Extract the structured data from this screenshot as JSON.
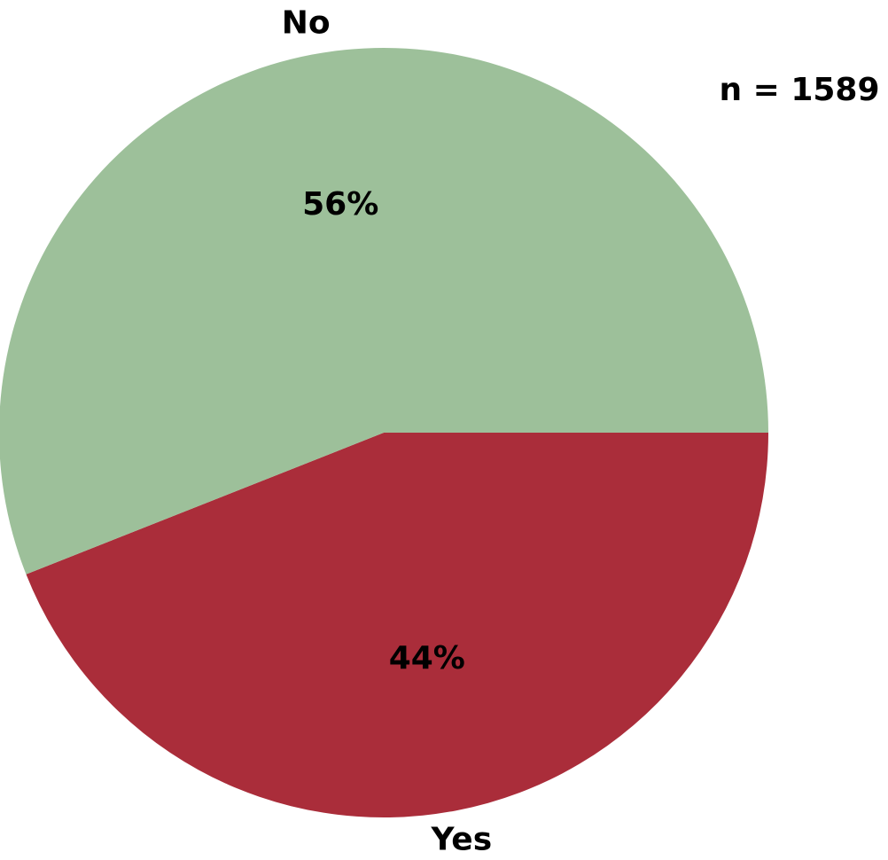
{
  "chart_data": {
    "type": "pie",
    "categories": [
      "No",
      "Yes"
    ],
    "values": [
      56,
      44
    ],
    "value_labels": [
      "56%",
      "44%"
    ],
    "colors": [
      "#9dc09a",
      "#aa2d3a"
    ],
    "annotation": "n = 1589"
  }
}
